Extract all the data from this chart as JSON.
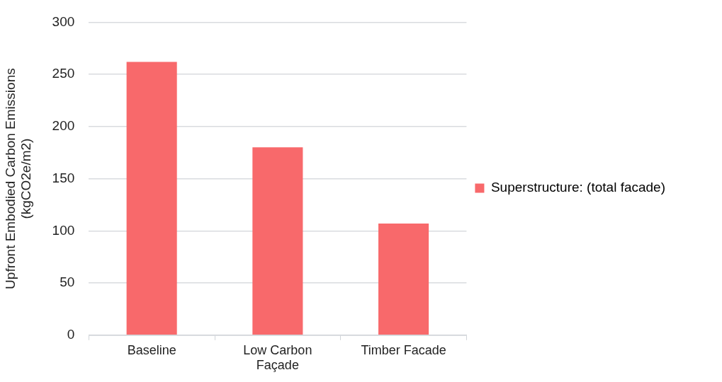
{
  "chart_data": {
    "type": "bar",
    "ylabel": "Upfront Embodied Carbon Emissions (kgCO2e/m2)",
    "categories": [
      "Baseline",
      "Low Carbon Façade",
      "Timber Facade"
    ],
    "series": [
      {
        "name": "Superstructure: (total facade)",
        "color": "#f8696b",
        "values": [
          262,
          180,
          107
        ]
      }
    ],
    "ylim": [
      0,
      300
    ],
    "yticks": [
      0,
      50,
      100,
      150,
      200,
      250,
      300
    ],
    "grid": "y",
    "legend": "right"
  }
}
